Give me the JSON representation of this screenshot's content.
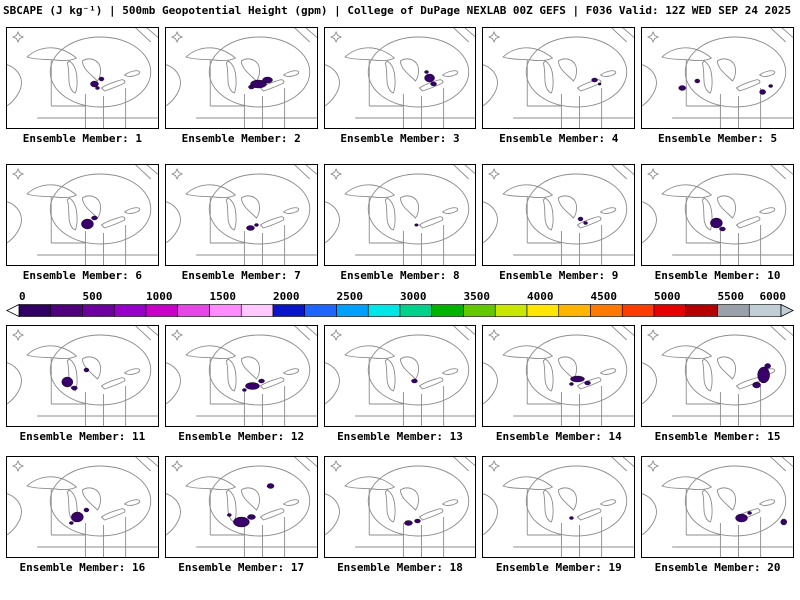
{
  "title": "SBCAPE (J kg⁻¹) | 500mb Geopotential Height (gpm) | College of DuPage NEXLAB 00Z GEFS | F036 Valid: 12Z WED SEP 24 2025",
  "colors": {
    "background": "#ffffff",
    "text": "#000000",
    "map_outline": "#8c8c8c",
    "contour": "#8c8c8c",
    "cape_fill": "#38006b",
    "panel_border": "#000000"
  },
  "colorbar": {
    "ticks": [
      "0",
      "500",
      "1000",
      "1500",
      "2000",
      "2500",
      "3000",
      "3500",
      "4000",
      "4500",
      "5000",
      "5500",
      "6000"
    ],
    "segment_colors": [
      "#320064",
      "#50007d",
      "#6e00a0",
      "#9600c8",
      "#c800c8",
      "#e646e6",
      "#ff8cff",
      "#ffc8ff",
      "#0a14c8",
      "#1e64ff",
      "#00a0ff",
      "#00e6e6",
      "#00d28c",
      "#00b400",
      "#64c800",
      "#c8e600",
      "#ffe600",
      "#ffb400",
      "#ff7800",
      "#ff3c00",
      "#e60000",
      "#b40000",
      "#9aa0aa",
      "#c2ced6"
    ]
  },
  "members": [
    {
      "label": "Ensemble Member: 1",
      "blobs": [
        [
          87,
          56,
          4,
          3
        ],
        [
          94,
          51,
          2.5,
          2
        ],
        [
          90,
          60,
          2,
          1.5
        ]
      ]
    },
    {
      "label": "Ensemble Member: 2",
      "blobs": [
        [
          92,
          56,
          8,
          4
        ],
        [
          101,
          52,
          5,
          3
        ],
        [
          85,
          59,
          3,
          2
        ]
      ]
    },
    {
      "label": "Ensemble Member: 3",
      "blobs": [
        [
          104,
          50,
          5,
          4
        ],
        [
          108,
          56,
          3,
          2
        ],
        [
          101,
          44,
          2,
          1.5
        ]
      ]
    },
    {
      "label": "Ensemble Member: 4",
      "blobs": [
        [
          111,
          52,
          3,
          2
        ],
        [
          116,
          56,
          1.5,
          1.2
        ]
      ]
    },
    {
      "label": "Ensemble Member: 5",
      "blobs": [
        [
          40,
          60,
          3.5,
          2.5
        ],
        [
          55,
          53,
          2.5,
          2
        ],
        [
          120,
          64,
          3,
          2.5
        ],
        [
          128,
          58,
          2,
          1.5
        ]
      ]
    },
    {
      "label": "Ensemble Member: 6",
      "blobs": [
        [
          80,
          59,
          6,
          5
        ],
        [
          87,
          53,
          3,
          2
        ]
      ]
    },
    {
      "label": "Ensemble Member: 7",
      "blobs": [
        [
          84,
          63,
          4,
          2.5
        ],
        [
          90,
          60,
          2,
          1.5
        ]
      ]
    },
    {
      "label": "Ensemble Member: 8",
      "blobs": [
        [
          91,
          60,
          1.8,
          1.3
        ]
      ]
    },
    {
      "label": "Ensemble Member: 9",
      "blobs": [
        [
          97,
          54,
          2.5,
          2
        ],
        [
          102,
          58,
          2,
          1.5
        ]
      ]
    },
    {
      "label": "Ensemble Member: 10",
      "blobs": [
        [
          74,
          58,
          6,
          5
        ],
        [
          80,
          64,
          3,
          2
        ]
      ]
    },
    {
      "label": "Ensemble Member: 11",
      "blobs": [
        [
          60,
          56,
          5.5,
          5
        ],
        [
          67,
          62,
          3,
          2
        ],
        [
          79,
          44,
          2.5,
          2
        ]
      ]
    },
    {
      "label": "Ensemble Member: 12",
      "blobs": [
        [
          86,
          60,
          7,
          3.5
        ],
        [
          95,
          55,
          3,
          2
        ],
        [
          78,
          64,
          2,
          1.5
        ]
      ]
    },
    {
      "label": "Ensemble Member: 13",
      "blobs": [
        [
          89,
          55,
          3,
          2
        ]
      ]
    },
    {
      "label": "Ensemble Member: 14",
      "blobs": [
        [
          94,
          53,
          7,
          3
        ],
        [
          104,
          57,
          3,
          2
        ],
        [
          88,
          58,
          2,
          1.5
        ]
      ]
    },
    {
      "label": "Ensemble Member: 15",
      "blobs": [
        [
          121,
          49,
          6,
          8
        ],
        [
          114,
          59,
          4,
          3
        ],
        [
          125,
          40,
          3,
          2.5
        ]
      ]
    },
    {
      "label": "Ensemble Member: 16",
      "blobs": [
        [
          70,
          60,
          6,
          5
        ],
        [
          79,
          53,
          2.5,
          2
        ],
        [
          64,
          66,
          2,
          1.5
        ]
      ]
    },
    {
      "label": "Ensemble Member: 17",
      "blobs": [
        [
          75,
          65,
          8,
          5
        ],
        [
          85,
          60,
          4,
          2.5
        ],
        [
          104,
          29,
          3.5,
          2.5
        ],
        [
          63,
          58,
          2,
          1.5
        ]
      ]
    },
    {
      "label": "Ensemble Member: 18",
      "blobs": [
        [
          83,
          66,
          4,
          2.5
        ],
        [
          92,
          64,
          3,
          2
        ]
      ]
    },
    {
      "label": "Ensemble Member: 19",
      "blobs": [
        [
          88,
          61,
          2,
          1.5
        ]
      ]
    },
    {
      "label": "Ensemble Member: 20",
      "blobs": [
        [
          99,
          61,
          6,
          4
        ],
        [
          107,
          56,
          2,
          1.5
        ],
        [
          141,
          65,
          3,
          3
        ]
      ]
    }
  ]
}
